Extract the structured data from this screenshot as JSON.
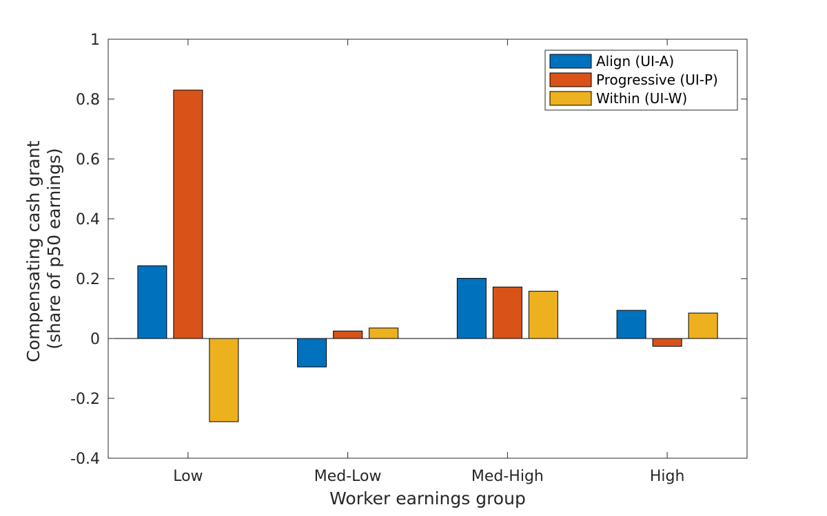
{
  "chart_data": {
    "type": "bar",
    "categories": [
      "Low",
      "Med-Low",
      "Med-High",
      "High"
    ],
    "series": [
      {
        "name": "Align (UI-A)",
        "color": "#0072BD",
        "values": [
          0.243,
          -0.095,
          0.201,
          0.094
        ]
      },
      {
        "name": "Progressive (UI-P)",
        "color": "#D95319",
        "values": [
          0.83,
          0.025,
          0.172,
          -0.026
        ]
      },
      {
        "name": "Within (UI-W)",
        "color": "#EDB120",
        "values": [
          -0.278,
          0.035,
          0.158,
          0.085
        ]
      }
    ],
    "title": "",
    "xlabel": "Worker earnings group",
    "ylabel_lines": [
      "Compensating cash grant",
      "(share of p50 earnings)"
    ],
    "ylim": [
      -0.4,
      1
    ],
    "yticks": [
      -0.4,
      -0.2,
      0,
      0.2,
      0.4,
      0.6,
      0.8,
      1
    ],
    "ytick_labels": [
      "-0.4",
      "-0.2",
      "0",
      "0.2",
      "0.4",
      "0.6",
      "0.8",
      "1"
    ],
    "grid": false,
    "legend_position": "top-right"
  }
}
